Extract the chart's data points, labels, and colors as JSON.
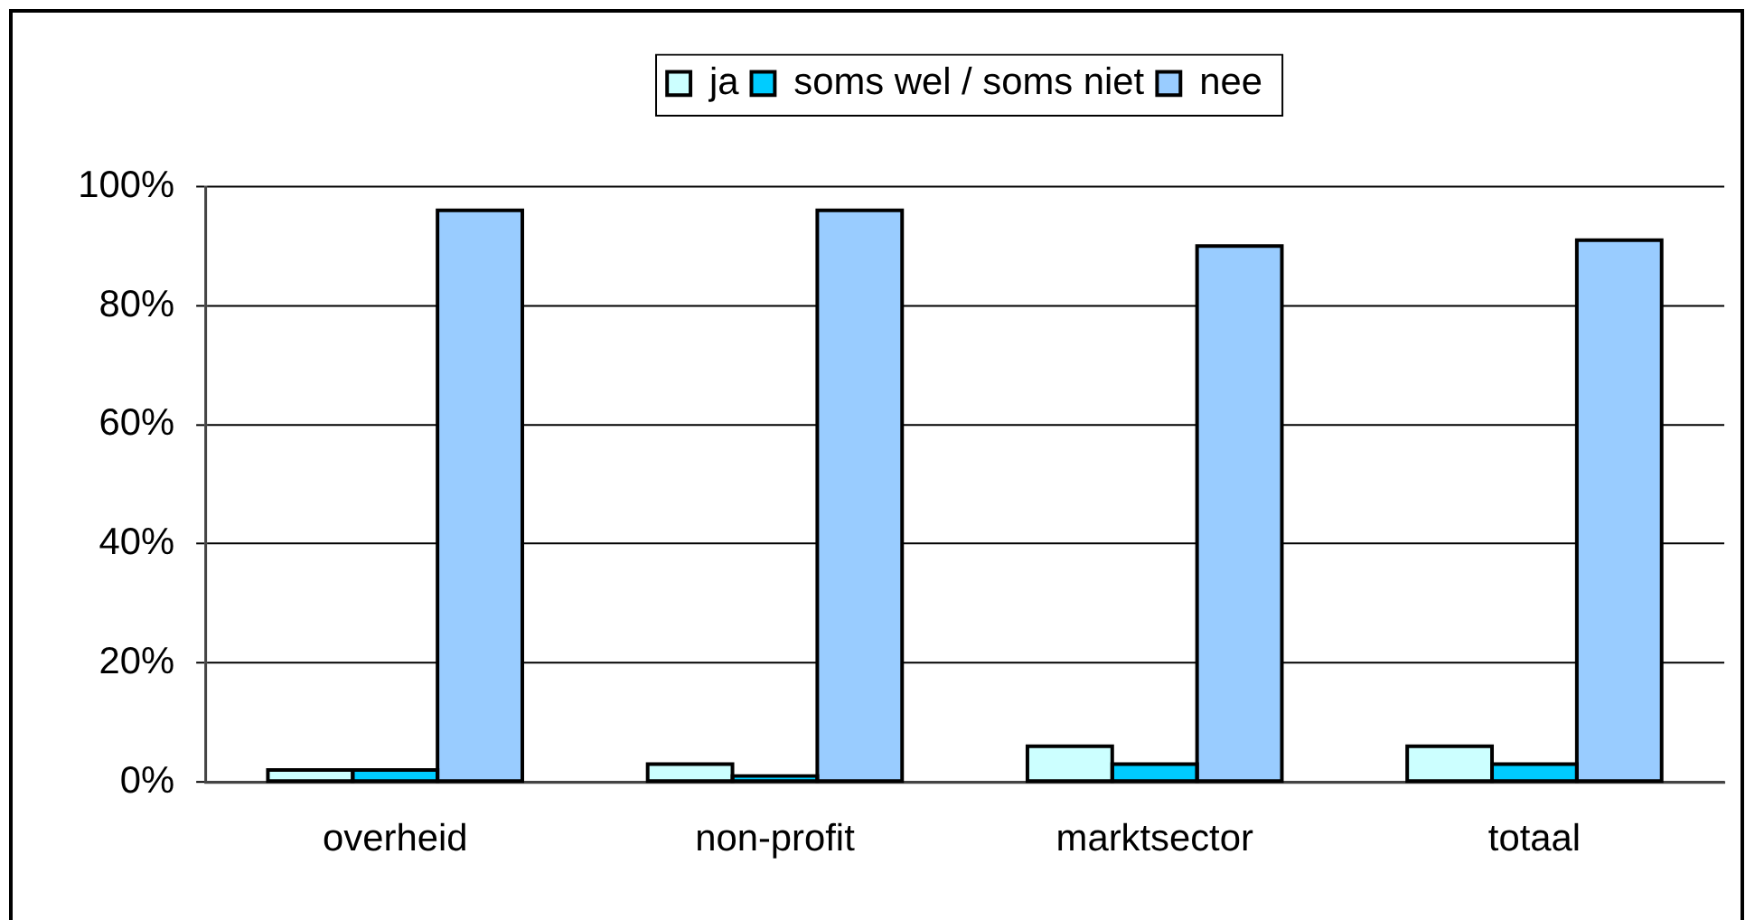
{
  "chart_data": {
    "type": "bar",
    "categories": [
      "overheid",
      "non-profit",
      "marktsector",
      "totaal"
    ],
    "series": [
      {
        "name": "ja",
        "color": "#ccffff",
        "values": [
          2,
          3,
          6,
          6
        ]
      },
      {
        "name": "soms wel / soms niet",
        "color": "#00ccff",
        "values": [
          2,
          1,
          3,
          3
        ]
      },
      {
        "name": "nee",
        "color": "#99ccff",
        "values": [
          96,
          96,
          90,
          91
        ]
      }
    ],
    "ylim": [
      0,
      100
    ],
    "yticks": [
      {
        "value": 0,
        "label": "0%"
      },
      {
        "value": 20,
        "label": "20%"
      },
      {
        "value": 40,
        "label": "40%"
      },
      {
        "value": 60,
        "label": "60%"
      },
      {
        "value": 80,
        "label": "80%"
      },
      {
        "value": 100,
        "label": "100%"
      }
    ],
    "grid": "y",
    "legend": "top"
  }
}
